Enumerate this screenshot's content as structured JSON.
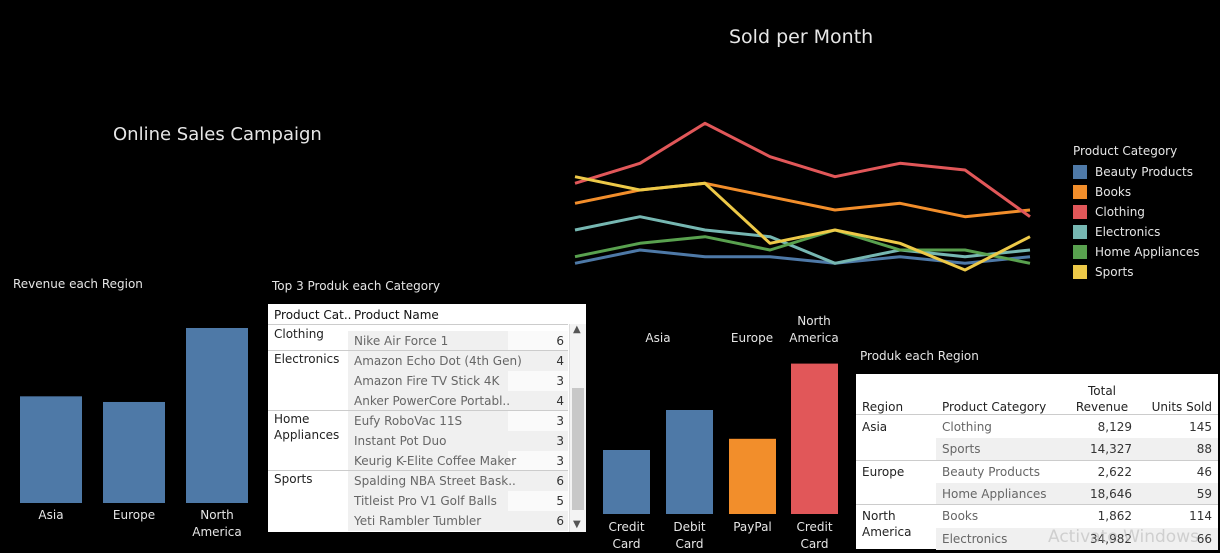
{
  "dashboard": {
    "title": "Online Sales Campaign",
    "watermark": "Activate Windows"
  },
  "colors": {
    "background": "#000000",
    "Beauty Products": "#4e79a7",
    "Books": "#f28e2b",
    "Clothing": "#e15759",
    "Electronics": "#76b7b2",
    "Home Appliances": "#59a14f",
    "Sports": "#edc948"
  },
  "chart_data": [
    {
      "id": "sold-per-month",
      "type": "line",
      "title": "Sold per Month",
      "legend_title": "Product Category",
      "legend_placement": "right",
      "grid": false,
      "ylim": [
        0,
        30
      ],
      "x": [
        1,
        2,
        3,
        4,
        5,
        6,
        7,
        8
      ],
      "series": [
        {
          "name": "Beauty Products",
          "values": [
            1,
            3,
            2,
            2,
            1,
            2,
            1,
            2
          ]
        },
        {
          "name": "Books",
          "values": [
            10,
            12,
            13,
            11,
            9,
            10,
            8,
            9
          ]
        },
        {
          "name": "Clothing",
          "values": [
            13,
            16,
            22,
            17,
            14,
            16,
            15,
            8
          ]
        },
        {
          "name": "Electronics",
          "values": [
            6,
            8,
            6,
            5,
            1,
            3,
            2,
            3
          ]
        },
        {
          "name": "Home Appliances",
          "values": [
            2,
            4,
            5,
            3,
            6,
            3,
            3,
            1
          ]
        },
        {
          "name": "Sports",
          "values": [
            14,
            12,
            13,
            4,
            6,
            4,
            0,
            5
          ]
        }
      ]
    },
    {
      "id": "revenue-each-region",
      "type": "bar",
      "title": "Revenue each Region",
      "categories": [
        "Asia",
        "Europe",
        "North America"
      ],
      "values": [
        22456,
        21268,
        36844
      ],
      "ylim": [
        0,
        40000
      ],
      "color": "#4e79a7"
    },
    {
      "id": "payment-by-region",
      "type": "bar",
      "categories": [
        "Credit Card",
        "Debit Card",
        "PayPal",
        "Credit Card"
      ],
      "groups": [
        "Asia",
        "Europe",
        "North America"
      ],
      "group_of_category": [
        "Asia",
        "Asia",
        "Europe",
        "North America"
      ],
      "values": [
        80,
        130,
        94,
        188
      ],
      "colors": [
        "#4e79a7",
        "#4e79a7",
        "#f28e2b",
        "#e15759"
      ],
      "ylim": [
        0,
        200
      ]
    },
    {
      "id": "top3-produk",
      "type": "table",
      "title": "Top 3 Produk  each Category",
      "columns": [
        "Product Cat..",
        "Product Name",
        ""
      ],
      "rows": [
        {
          "category": "Clothing",
          "product": "Nike Air Force 1",
          "value": "6"
        },
        {
          "category": "Electronics",
          "product": "Amazon Echo Dot (4th Gen)",
          "value": "4"
        },
        {
          "category": "",
          "product": "Amazon Fire TV Stick 4K",
          "value": "3"
        },
        {
          "category": "",
          "product": "Anker PowerCore Portabl..",
          "value": "4"
        },
        {
          "category": "Home Appliances",
          "product": "Eufy RoboVac 11S",
          "value": "3"
        },
        {
          "category": "",
          "product": "Instant Pot Duo",
          "value": "3"
        },
        {
          "category": "",
          "product": "Keurig K-Elite Coffee Maker",
          "value": "3"
        },
        {
          "category": "Sports",
          "product": "Spalding NBA Street Bask..",
          "value": "6"
        },
        {
          "category": "",
          "product": "Titleist Pro V1 Golf Balls",
          "value": "5"
        },
        {
          "category": "",
          "product": "Yeti Rambler Tumbler",
          "value": "6"
        }
      ]
    },
    {
      "id": "produk-each-region",
      "type": "table",
      "title": "Produk each Region",
      "columns": [
        "Region",
        "Product Category",
        "Total Revenue",
        "Units Sold"
      ],
      "rows": [
        {
          "region": "Asia",
          "category": "Clothing",
          "revenue": "8,129",
          "units": "145"
        },
        {
          "region": "",
          "category": "Sports",
          "revenue": "14,327",
          "units": "88"
        },
        {
          "region": "Europe",
          "category": "Beauty Products",
          "revenue": "2,622",
          "units": "46"
        },
        {
          "region": "",
          "category": "Home Appliances",
          "revenue": "18,646",
          "units": "59"
        },
        {
          "region": "North America",
          "category": "Books",
          "revenue": "1,862",
          "units": "114"
        },
        {
          "region": "",
          "category": "Electronics",
          "revenue": "34,982",
          "units": "66"
        }
      ]
    }
  ]
}
